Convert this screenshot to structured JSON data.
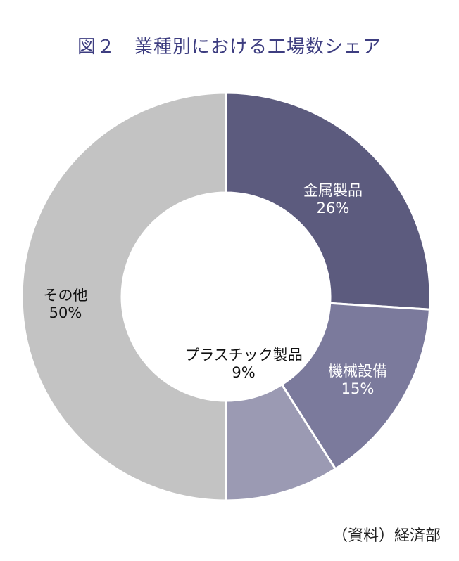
{
  "header": {
    "title": "図２　業種別における工場数シェア"
  },
  "footer": {
    "source": "（資料）経済部"
  },
  "chart_data": {
    "type": "pie",
    "title": "図２　業種別における工場数シェア",
    "donut": true,
    "start_angle_deg": 0,
    "direction": "clockwise",
    "categories": [
      "金属製品",
      "機械設備",
      "プラスチック製品",
      "その他"
    ],
    "values": [
      26,
      15,
      9,
      50
    ],
    "labels": [
      "26%",
      "15%",
      "9%",
      "50%"
    ],
    "colors": [
      "#5c5b7e",
      "#7b7a9c",
      "#9b9ab3",
      "#c3c3c3"
    ],
    "label_colors": [
      "#ffffff",
      "#ffffff",
      "#111111",
      "#111111"
    ],
    "xlabel": "",
    "ylabel": "",
    "legend": "none"
  }
}
